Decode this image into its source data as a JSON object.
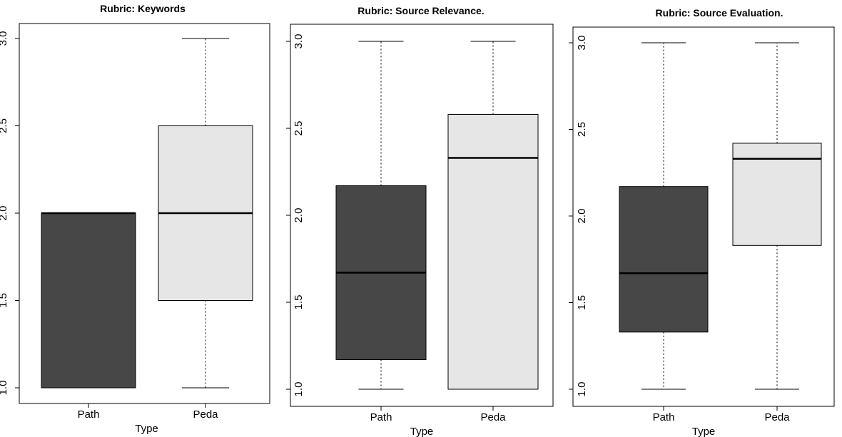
{
  "chart_data": [
    {
      "type": "box",
      "title": "Rubric: Keywords",
      "xlabel": "Type",
      "ylabel": "",
      "ylim": [
        1.0,
        3.0
      ],
      "yticks": [
        "1.0",
        "1.5",
        "2.0",
        "2.5",
        "3.0"
      ],
      "categories": [
        "Path",
        "Peda"
      ],
      "boxes": [
        {
          "name": "Path",
          "min": 1.0,
          "q1": 1.0,
          "median": 2.0,
          "q3": 2.0,
          "max": 2.0,
          "color": "#474747"
        },
        {
          "name": "Peda",
          "min": 1.0,
          "q1": 1.5,
          "median": 2.0,
          "q3": 2.5,
          "max": 3.0,
          "color": "#e6e6e6"
        }
      ]
    },
    {
      "type": "box",
      "title": "Rubric: Source Relevance.",
      "xlabel": "Type",
      "ylabel": "",
      "ylim": [
        1.0,
        3.0
      ],
      "yticks": [
        "1.0",
        "1.5",
        "2.0",
        "2.5",
        "3.0"
      ],
      "categories": [
        "Path",
        "Peda"
      ],
      "boxes": [
        {
          "name": "Path",
          "min": 1.0,
          "q1": 1.17,
          "median": 1.67,
          "q3": 2.17,
          "max": 3.0,
          "color": "#474747"
        },
        {
          "name": "Peda",
          "min": 1.0,
          "q1": 1.0,
          "median": 2.33,
          "q3": 2.58,
          "max": 3.0,
          "color": "#e6e6e6"
        }
      ]
    },
    {
      "type": "box",
      "title": "Rubric: Source Evaluation.",
      "xlabel": "Type",
      "ylabel": "",
      "ylim": [
        1.0,
        3.0
      ],
      "yticks": [
        "1.0",
        "1.5",
        "2.0",
        "2.5",
        "3.0"
      ],
      "categories": [
        "Path",
        "Peda"
      ],
      "boxes": [
        {
          "name": "Path",
          "min": 1.0,
          "q1": 1.33,
          "median": 1.67,
          "q3": 2.17,
          "max": 3.0,
          "color": "#474747"
        },
        {
          "name": "Peda",
          "min": 1.0,
          "q1": 1.83,
          "median": 2.33,
          "q3": 2.42,
          "max": 3.0,
          "color": "#e6e6e6"
        }
      ]
    }
  ]
}
